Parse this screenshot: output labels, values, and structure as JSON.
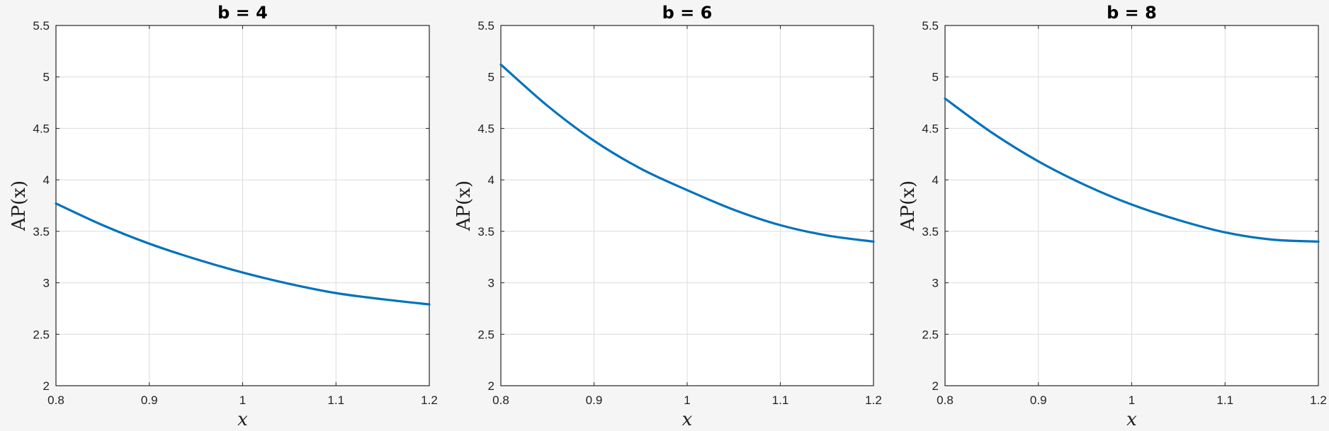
{
  "colors": {
    "background": "#f5f5f5",
    "axes_background": "#ffffff",
    "grid": "#dcdcdc",
    "axis": "#262626",
    "line": "#0072bd"
  },
  "chart_data": [
    {
      "type": "line",
      "title": "b = 4",
      "xlabel": "x",
      "ylabel": "AP(x)",
      "xlim": [
        0.8,
        1.2
      ],
      "ylim": [
        2,
        5.5
      ],
      "xticks": [
        "0.8",
        "0.9",
        "1",
        "1.1",
        "1.2"
      ],
      "yticks": [
        "2",
        "2.5",
        "3",
        "3.5",
        "4",
        "4.5",
        "5",
        "5.5"
      ],
      "grid": true,
      "series": [
        {
          "x": [
            0.8,
            0.85,
            0.9,
            0.95,
            1.0,
            1.05,
            1.1,
            1.15,
            1.2
          ],
          "y": [
            3.77,
            3.56,
            3.38,
            3.23,
            3.1,
            2.99,
            2.9,
            2.84,
            2.79
          ]
        }
      ]
    },
    {
      "type": "line",
      "title": "b = 6",
      "xlabel": "x",
      "ylabel": "AP(x)",
      "xlim": [
        0.8,
        1.2
      ],
      "ylim": [
        2,
        5.5
      ],
      "xticks": [
        "0.8",
        "0.9",
        "1",
        "1.1",
        "1.2"
      ],
      "yticks": [
        "2",
        "2.5",
        "3",
        "3.5",
        "4",
        "4.5",
        "5",
        "5.5"
      ],
      "grid": true,
      "series": [
        {
          "x": [
            0.8,
            0.85,
            0.9,
            0.95,
            1.0,
            1.05,
            1.1,
            1.15,
            1.2
          ],
          "y": [
            5.12,
            4.72,
            4.38,
            4.11,
            3.9,
            3.71,
            3.56,
            3.46,
            3.4
          ]
        }
      ]
    },
    {
      "type": "line",
      "title": "b = 8",
      "xlabel": "x",
      "ylabel": "AP(x)",
      "xlim": [
        0.8,
        1.2
      ],
      "ylim": [
        2,
        5.5
      ],
      "xticks": [
        "0.8",
        "0.9",
        "1",
        "1.1",
        "1.2"
      ],
      "yticks": [
        "2",
        "2.5",
        "3",
        "3.5",
        "4",
        "4.5",
        "5",
        "5.5"
      ],
      "grid": true,
      "series": [
        {
          "x": [
            0.8,
            0.85,
            0.9,
            0.95,
            1.0,
            1.05,
            1.1,
            1.15,
            1.2
          ],
          "y": [
            4.79,
            4.46,
            4.18,
            3.95,
            3.76,
            3.61,
            3.49,
            3.42,
            3.4
          ]
        }
      ]
    }
  ]
}
